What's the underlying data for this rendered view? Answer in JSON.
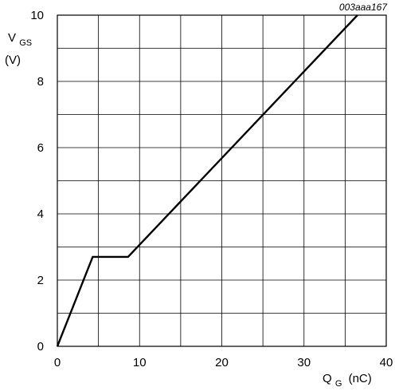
{
  "chart_data": {
    "type": "line",
    "figure_code": "003aaa167",
    "y_axis": {
      "label_main": "V",
      "label_sub": "GS",
      "label_unit": "(V)",
      "ylim": [
        0,
        10
      ],
      "ticks": [
        0,
        2,
        4,
        6,
        8,
        10
      ],
      "minor_step": 1
    },
    "x_axis": {
      "label_main": "Q",
      "label_sub": "G",
      "label_unit": "(nC)",
      "xlim": [
        0,
        40
      ],
      "ticks": [
        0,
        10,
        20,
        30,
        40
      ],
      "minor_step": 5
    },
    "grid": true,
    "series": [
      {
        "x": [
          0,
          4.3,
          8.6,
          36.5
        ],
        "y": [
          0,
          2.7,
          2.7,
          10
        ]
      }
    ]
  }
}
